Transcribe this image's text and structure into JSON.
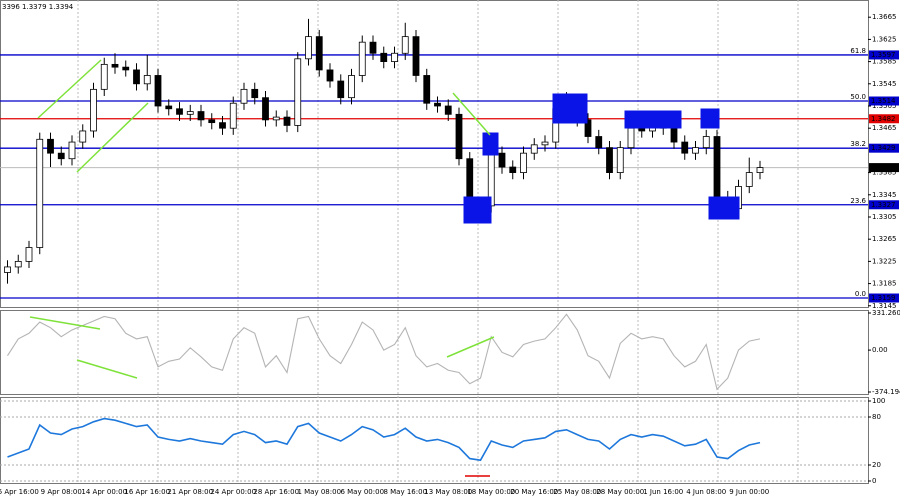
{
  "chart_data": [
    {
      "type": "candlestick",
      "title": "3396 1.3379 1.3394",
      "categories": [
        null,
        "6 Apr 16:00",
        null,
        null,
        null,
        "9 Apr 08:00",
        null,
        null,
        null,
        "14 Apr 00:00",
        null,
        null,
        null,
        "16 Apr 16:00",
        null,
        null,
        null,
        "21 Apr 08:00",
        null,
        null,
        null,
        "24 Apr 00:00",
        null,
        null,
        null,
        "28 Apr 16:00",
        null,
        null,
        null,
        "1 May 08:00",
        null,
        null,
        null,
        "6 May 00:00",
        null,
        null,
        null,
        "8 May 16:00",
        null,
        null,
        null,
        "13 May 08:00",
        null,
        null,
        null,
        "18 May 00:00",
        null,
        null,
        null,
        "20 May 16:00",
        null,
        null,
        null,
        "25 May 08:00",
        null,
        null,
        null,
        "28 May 00:00",
        null,
        null,
        null,
        "1 Jun 16:00",
        null,
        null,
        null,
        "4 Jun 08:00",
        null,
        null,
        null,
        "9 Jun 00:00",
        null
      ],
      "open": [
        1.3205,
        1.3215,
        1.3225,
        1.325,
        1.3445,
        1.342,
        1.341,
        1.344,
        1.346,
        1.3535,
        1.358,
        1.3575,
        1.357,
        1.3545,
        1.356,
        1.3505,
        1.35,
        1.349,
        1.3495,
        1.348,
        1.3475,
        1.3465,
        1.351,
        1.3535,
        1.352,
        1.348,
        1.3485,
        1.347,
        1.359,
        1.363,
        1.357,
        1.355,
        1.352,
        1.356,
        1.362,
        1.36,
        1.3585,
        1.36,
        1.363,
        1.356,
        1.351,
        1.3505,
        1.349,
        1.341,
        1.333,
        1.3325,
        1.342,
        1.3395,
        1.3385,
        1.342,
        1.3435,
        1.344,
        1.35,
        1.3505,
        1.348,
        1.345,
        1.343,
        1.3385,
        1.343,
        1.3465,
        1.346,
        1.347,
        1.3465,
        1.344,
        1.342,
        1.343,
        1.345,
        1.334,
        1.332,
        1.336,
        1.3385
      ],
      "high": [
        1.3227,
        1.3237,
        1.3262,
        1.3457,
        1.3457,
        1.3432,
        1.3452,
        1.3472,
        1.3547,
        1.3592,
        1.36,
        1.3587,
        1.3582,
        1.3597,
        1.3572,
        1.3517,
        1.3512,
        1.3507,
        1.3507,
        1.3492,
        1.3487,
        1.3522,
        1.3547,
        1.3547,
        1.3532,
        1.3497,
        1.3497,
        1.3602,
        1.3662,
        1.3642,
        1.3582,
        1.3562,
        1.3572,
        1.3632,
        1.3632,
        1.3612,
        1.3612,
        1.3655,
        1.3642,
        1.3572,
        1.3522,
        1.3517,
        1.3502,
        1.3422,
        1.3342,
        1.3432,
        1.3432,
        1.3407,
        1.3432,
        1.3447,
        1.3452,
        1.3512,
        1.353,
        1.3517,
        1.3492,
        1.3462,
        1.3442,
        1.3442,
        1.3477,
        1.3477,
        1.3482,
        1.3482,
        1.3477,
        1.3452,
        1.3442,
        1.3462,
        1.3462,
        1.3352,
        1.3372,
        1.3412,
        1.3406
      ],
      "low": [
        1.3185,
        1.3203,
        1.3213,
        1.3238,
        1.3395,
        1.3398,
        1.3398,
        1.3428,
        1.3448,
        1.3523,
        1.3563,
        1.3558,
        1.3533,
        1.3533,
        1.3493,
        1.3488,
        1.3478,
        1.3478,
        1.3468,
        1.3463,
        1.3453,
        1.3453,
        1.3498,
        1.3508,
        1.3468,
        1.3468,
        1.3458,
        1.3458,
        1.3578,
        1.3558,
        1.3538,
        1.3508,
        1.3508,
        1.3548,
        1.3588,
        1.3573,
        1.3573,
        1.3588,
        1.3548,
        1.3498,
        1.3493,
        1.3478,
        1.3398,
        1.3318,
        1.3305,
        1.3313,
        1.3383,
        1.3373,
        1.3373,
        1.3408,
        1.3423,
        1.3428,
        1.3488,
        1.3468,
        1.3438,
        1.3418,
        1.3373,
        1.3373,
        1.3418,
        1.3448,
        1.3448,
        1.3453,
        1.3428,
        1.3408,
        1.3408,
        1.3418,
        1.3328,
        1.3308,
        1.3308,
        1.3348,
        1.3373
      ],
      "close": [
        1.3215,
        1.3225,
        1.325,
        1.3445,
        1.342,
        1.341,
        1.344,
        1.346,
        1.3535,
        1.358,
        1.3575,
        1.357,
        1.3545,
        1.356,
        1.3505,
        1.35,
        1.349,
        1.3495,
        1.348,
        1.3475,
        1.3465,
        1.351,
        1.3535,
        1.352,
        1.348,
        1.3485,
        1.347,
        1.359,
        1.363,
        1.357,
        1.355,
        1.352,
        1.356,
        1.362,
        1.36,
        1.3585,
        1.36,
        1.363,
        1.356,
        1.351,
        1.3505,
        1.349,
        1.341,
        1.333,
        1.3325,
        1.342,
        1.3395,
        1.3385,
        1.342,
        1.3435,
        1.344,
        1.35,
        1.3505,
        1.348,
        1.345,
        1.343,
        1.3385,
        1.343,
        1.3465,
        1.346,
        1.347,
        1.3465,
        1.344,
        1.342,
        1.343,
        1.345,
        1.334,
        1.332,
        1.336,
        1.3385,
        1.3394
      ],
      "ylim": [
        1.3141,
        1.3696
      ],
      "yticks": [
        1.3665,
        1.3625,
        1.3585,
        1.3545,
        1.3505,
        1.3465,
        1.3385,
        1.3345,
        1.3305,
        1.3265,
        1.3225,
        1.3185,
        1.3145
      ],
      "levels": [
        {
          "name": "61.8",
          "value": 1.3597,
          "color": "#0000cc"
        },
        {
          "name": "50.0",
          "value": 1.3514,
          "color": "#0000cc"
        },
        {
          "value": 1.3482,
          "color": "#e00000"
        },
        {
          "name": "38.2",
          "value": 1.3429,
          "color": "#0000cc"
        },
        {
          "name": "23.6",
          "value": 1.3327,
          "color": "#0000cc"
        },
        {
          "name": "0.0",
          "value": 1.3159,
          "color": "#0000cc"
        }
      ],
      "last_price": 1.3394
    },
    {
      "type": "line",
      "color": "#b4b4b4",
      "values": [
        -50,
        100,
        150,
        250,
        200,
        120,
        180,
        220,
        260,
        300,
        280,
        150,
        100,
        120,
        -150,
        -100,
        -80,
        20,
        -60,
        -150,
        -180,
        100,
        200,
        150,
        -150,
        -50,
        -200,
        280,
        300,
        100,
        -50,
        -120,
        50,
        250,
        180,
        0,
        50,
        200,
        -50,
        -150,
        -120,
        -180,
        -200,
        -300,
        -250,
        120,
        -20,
        -60,
        50,
        80,
        100,
        200,
        320,
        180,
        -50,
        -100,
        -250,
        60,
        150,
        100,
        120,
        100,
        -50,
        -150,
        -100,
        50,
        -350,
        -250,
        0,
        80,
        100
      ],
      "ylim": [
        -374.1944,
        331.2603
      ],
      "yticks": [
        331.2603,
        {
          "value": 0,
          "label": "0.00"
        },
        -374.1944
      ]
    },
    {
      "type": "line",
      "color": "#1e78dc",
      "values": [
        30,
        35,
        40,
        70,
        60,
        58,
        65,
        68,
        74,
        78,
        76,
        72,
        68,
        70,
        55,
        52,
        50,
        53,
        50,
        48,
        46,
        58,
        62,
        58,
        48,
        50,
        46,
        68,
        72,
        60,
        55,
        50,
        58,
        68,
        64,
        55,
        58,
        66,
        55,
        50,
        52,
        48,
        42,
        28,
        26,
        50,
        45,
        42,
        50,
        52,
        54,
        62,
        64,
        58,
        52,
        50,
        40,
        52,
        58,
        55,
        58,
        56,
        50,
        44,
        46,
        52,
        30,
        28,
        38,
        45,
        48
      ],
      "ylim": [
        0,
        100
      ],
      "yticks": [
        100,
        80,
        20,
        0
      ],
      "grid": true
    }
  ]
}
